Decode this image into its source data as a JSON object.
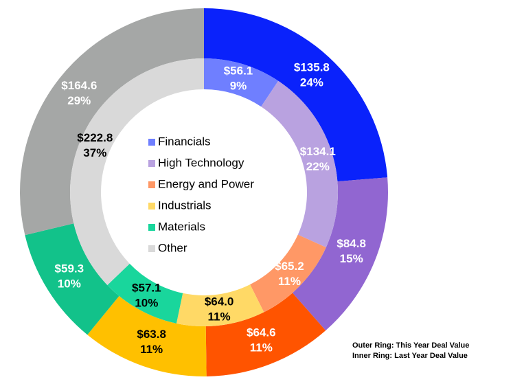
{
  "chart_data": {
    "type": "donut",
    "categories": [
      "Financials",
      "High Technology",
      "Energy and Power",
      "Industrials",
      "Materials",
      "Other"
    ],
    "series": [
      {
        "ring": "outer",
        "values": [
          135.8,
          84.8,
          64.6,
          63.8,
          59.3,
          164.6
        ],
        "value_labels": [
          "$135.8",
          "$84.8",
          "$64.6",
          "$63.8",
          "$59.3",
          "$164.6"
        ],
        "percents": [
          24,
          15,
          11,
          11,
          10,
          29
        ],
        "percent_labels": [
          "24%",
          "15%",
          "11%",
          "11%",
          "10%",
          "29%"
        ],
        "colors": [
          "#0a22fb",
          "#9166d1",
          "#ff5400",
          "#ffc000",
          "#12c28a",
          "#a5a7a6"
        ],
        "label_colors": [
          "#ffffff",
          "#ffffff",
          "#ffffff",
          "#000000",
          "#ffffff",
          "#ffffff"
        ]
      },
      {
        "ring": "inner",
        "values": [
          56.1,
          134.1,
          65.2,
          64.0,
          57.1,
          222.8
        ],
        "value_labels": [
          "$56.1",
          "$134.1",
          "$65.2",
          "$64.0",
          "$57.1",
          "$222.8"
        ],
        "percents": [
          9,
          22,
          11,
          11,
          10,
          37
        ],
        "percent_labels": [
          "9%",
          "22%",
          "11%",
          "11%",
          "10%",
          "37%"
        ],
        "colors": [
          "#6f7fff",
          "#b9a2e0",
          "#ff9866",
          "#ffd966",
          "#19d69c",
          "#d9d9d9"
        ],
        "label_colors": [
          "#ffffff",
          "#ffffff",
          "#ffffff",
          "#000000",
          "#000000",
          "#000000"
        ]
      }
    ],
    "annotations": [
      "Outer Ring: This Year Deal Value",
      "Inner Ring: Last Year Deal Value"
    ]
  }
}
